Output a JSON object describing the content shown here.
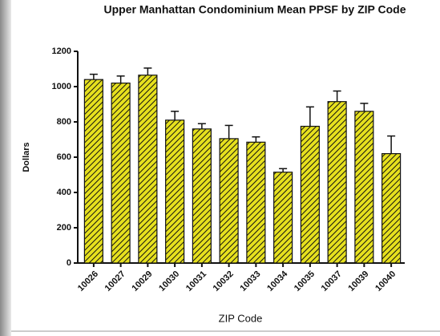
{
  "chart_data": {
    "type": "bar",
    "title": "Upper Manhattan Condominium Mean PPSF by ZIP Code",
    "x_label": "ZIP Code",
    "y_label": "Dollars",
    "categories": [
      "10026",
      "10027",
      "10029",
      "10030",
      "10031",
      "10032",
      "10033",
      "10034",
      "10035",
      "10037",
      "10039",
      "10040"
    ],
    "values": [
      1040,
      1020,
      1065,
      810,
      760,
      705,
      685,
      515,
      775,
      915,
      860,
      620
    ],
    "errors": [
      30,
      40,
      40,
      50,
      30,
      75,
      30,
      20,
      110,
      60,
      45,
      100
    ],
    "color": "#e6e01e",
    "ylim": [
      0,
      1200
    ],
    "yticks": [
      0,
      200,
      400,
      600,
      800,
      1000,
      1200
    ]
  }
}
